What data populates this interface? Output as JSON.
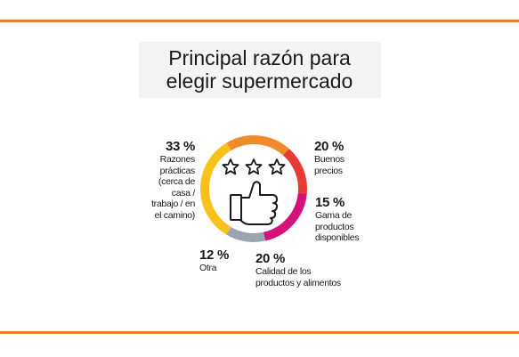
{
  "chart_data": {
    "type": "pie",
    "title_lines": [
      "Principal razón para",
      "elegir supermercado"
    ],
    "slices": [
      {
        "pct_label": "33 %",
        "value": 33,
        "label_lines": [
          "Razones",
          "prácticas",
          "(cerca de",
          "casa /",
          "trabajo / en",
          "el camino)"
        ],
        "color": "#f9c21a"
      },
      {
        "pct_label": "20 %",
        "value": 20,
        "label_lines": [
          "Buenos",
          "precios"
        ],
        "color": "#f08a2a"
      },
      {
        "pct_label": "15 %",
        "value": 15,
        "label_lines": [
          "Gama de",
          "productos",
          "disponibles"
        ],
        "color": "#ea3a36"
      },
      {
        "pct_label": "20 %",
        "value": 20,
        "label_lines": [
          "Calidad de los",
          "productos y alimentos"
        ],
        "color": "#d6127a"
      },
      {
        "pct_label": "12 %",
        "value": 12,
        "label_lines": [
          "Otra"
        ],
        "color": "#98a5b0"
      }
    ]
  },
  "colors": {
    "rule": "#ee7b2f",
    "icon": "#1a1a1a"
  },
  "icons": [
    "star-icon",
    "star-icon",
    "star-icon",
    "thumbs-up-icon"
  ]
}
